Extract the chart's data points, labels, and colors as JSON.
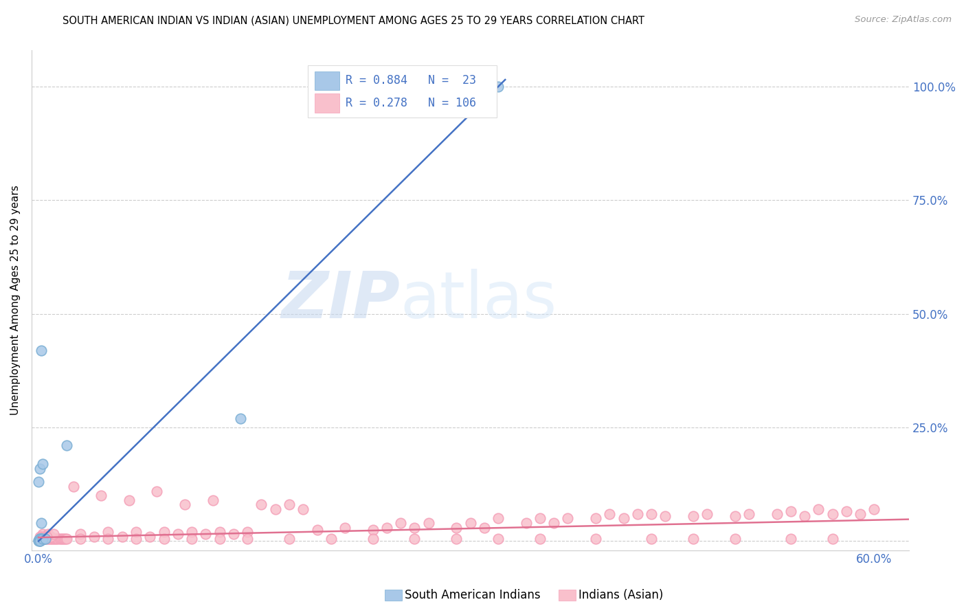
{
  "title": "SOUTH AMERICAN INDIAN VS INDIAN (ASIAN) UNEMPLOYMENT AMONG AGES 25 TO 29 YEARS CORRELATION CHART",
  "source": "Source: ZipAtlas.com",
  "ylabel": "Unemployment Among Ages 25 to 29 years",
  "xlim": [
    -0.005,
    0.625
  ],
  "ylim": [
    -0.02,
    1.08
  ],
  "blue_color": "#A8C8E8",
  "blue_edge_color": "#7BAFD4",
  "pink_color": "#F9C0CC",
  "pink_edge_color": "#F4A0B8",
  "blue_line_color": "#4472C4",
  "pink_line_color": "#E07090",
  "legend_blue_r": "R = 0.884",
  "legend_blue_n": "N =  23",
  "legend_pink_r": "R = 0.278",
  "legend_pink_n": "N = 106",
  "watermark_zip": "ZIP",
  "watermark_atlas": "atlas",
  "grid_color": "#CCCCCC",
  "background_color": "#FFFFFF",
  "blue_scatter_x": [
    0.0,
    0.001,
    0.002,
    0.001,
    0.003,
    0.001,
    0.0,
    0.002,
    0.001,
    0.002,
    0.001,
    0.003,
    0.002,
    0.001,
    0.0,
    0.001,
    0.002,
    0.001,
    0.003,
    0.02,
    0.145,
    0.005,
    0.33
  ],
  "blue_scatter_y": [
    0.0,
    0.002,
    0.005,
    0.0,
    0.003,
    0.001,
    0.002,
    0.04,
    0.005,
    0.005,
    0.16,
    0.17,
    0.42,
    0.005,
    0.13,
    0.005,
    0.005,
    0.0,
    0.005,
    0.21,
    0.27,
    0.005,
    1.0
  ],
  "pink_scatter_x": [
    0.001,
    0.002,
    0.003,
    0.004,
    0.005,
    0.006,
    0.007,
    0.008,
    0.009,
    0.01,
    0.011,
    0.012,
    0.013,
    0.014,
    0.015,
    0.016,
    0.017,
    0.018,
    0.019,
    0.02,
    0.003,
    0.005,
    0.007,
    0.009,
    0.011,
    0.001,
    0.002,
    0.004,
    0.006,
    0.03,
    0.04,
    0.05,
    0.06,
    0.07,
    0.08,
    0.09,
    0.1,
    0.11,
    0.12,
    0.13,
    0.14,
    0.15,
    0.16,
    0.17,
    0.18,
    0.19,
    0.2,
    0.22,
    0.24,
    0.25,
    0.26,
    0.27,
    0.28,
    0.3,
    0.31,
    0.32,
    0.33,
    0.35,
    0.36,
    0.37,
    0.38,
    0.4,
    0.41,
    0.42,
    0.43,
    0.44,
    0.45,
    0.47,
    0.48,
    0.5,
    0.51,
    0.53,
    0.54,
    0.55,
    0.56,
    0.57,
    0.58,
    0.59,
    0.6,
    0.03,
    0.05,
    0.07,
    0.09,
    0.11,
    0.13,
    0.15,
    0.18,
    0.21,
    0.24,
    0.27,
    0.3,
    0.33,
    0.36,
    0.4,
    0.44,
    0.47,
    0.5,
    0.54,
    0.57,
    0.025,
    0.045,
    0.065,
    0.085,
    0.105,
    0.125
  ],
  "pink_scatter_y": [
    0.005,
    0.005,
    0.005,
    0.005,
    0.005,
    0.005,
    0.005,
    0.005,
    0.005,
    0.005,
    0.005,
    0.005,
    0.005,
    0.005,
    0.005,
    0.005,
    0.005,
    0.005,
    0.005,
    0.005,
    0.015,
    0.01,
    0.015,
    0.01,
    0.015,
    0.01,
    0.01,
    0.01,
    0.01,
    0.015,
    0.01,
    0.02,
    0.01,
    0.02,
    0.01,
    0.02,
    0.015,
    0.02,
    0.015,
    0.02,
    0.015,
    0.02,
    0.08,
    0.07,
    0.08,
    0.07,
    0.025,
    0.03,
    0.025,
    0.03,
    0.04,
    0.03,
    0.04,
    0.03,
    0.04,
    0.03,
    0.05,
    0.04,
    0.05,
    0.04,
    0.05,
    0.05,
    0.06,
    0.05,
    0.06,
    0.06,
    0.055,
    0.055,
    0.06,
    0.055,
    0.06,
    0.06,
    0.065,
    0.055,
    0.07,
    0.06,
    0.065,
    0.06,
    0.07,
    0.005,
    0.005,
    0.005,
    0.005,
    0.005,
    0.005,
    0.005,
    0.005,
    0.005,
    0.005,
    0.005,
    0.005,
    0.005,
    0.005,
    0.005,
    0.005,
    0.005,
    0.005,
    0.005,
    0.005,
    0.12,
    0.1,
    0.09,
    0.11,
    0.08,
    0.09
  ]
}
